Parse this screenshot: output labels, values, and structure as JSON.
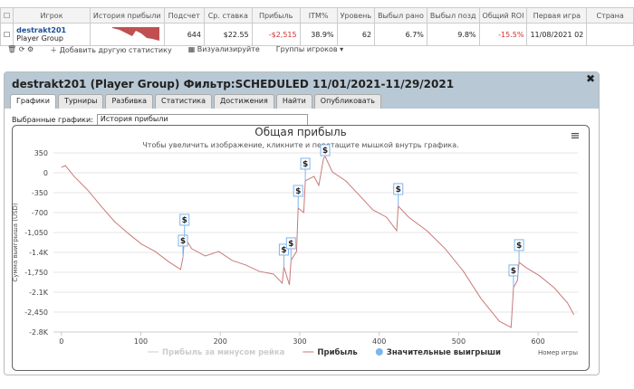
{
  "table": {
    "headers": [
      "Игрок",
      "История прибыли",
      "Подсчет",
      "Ср. ставка",
      "Прибыль",
      "ITM%",
      "Уровень",
      "Выбыл рано",
      "Выбыл позд",
      "Общий ROI",
      "Первая игра",
      "Страна"
    ],
    "row": {
      "player": "destrakt201",
      "group": "Player Group",
      "cells": [
        "644",
        "$22.55",
        "-$2,515",
        "38.9%",
        "62",
        "6.7%",
        "9.8%",
        "-15.5%",
        "11/08/2021 02"
      ]
    }
  },
  "toolbar": [
    "Добавить другую статистику",
    "Визуализируйте",
    "Группы игроков"
  ],
  "panel": {
    "title": "destrakt201 (Player Group)",
    "filter_label": "Фильтр:",
    "filter": "SCHEDULED 11/01/2021-11/29/2021",
    "tabs": [
      "Графики",
      "Турниры",
      "Разбивка",
      "Статистика",
      "Достижения",
      "Найти",
      "Опубликовать"
    ],
    "select_label": "Выбранные графики:",
    "select_value": "История прибыли"
  },
  "chart": {
    "type": "line",
    "title": "Общая прибыль",
    "subtitle": "Чтобы увеличить изображение, кликните и перетащите мышкой внутрь графика.",
    "y_label": "Сумма выигрыша (USD)",
    "x_label": "Номер игры",
    "xlim": [
      -10,
      650
    ],
    "xticks": [
      0,
      100,
      200,
      300,
      400,
      500,
      600
    ],
    "ylim": [
      -2800,
      350
    ],
    "yticks": [
      350,
      0,
      -350,
      -700,
      {
        "value": -1050,
        "label": "-1,050"
      },
      {
        "value": -1400,
        "label": "-1.4K"
      },
      {
        "value": -1750,
        "label": "-1,750"
      },
      {
        "value": -2100,
        "label": "-2.1K"
      },
      {
        "value": -2450,
        "label": "-2,450"
      },
      {
        "value": -2800,
        "label": "-2.8K"
      }
    ],
    "grid": true,
    "series": [
      {
        "name": "Прибыль за минусом рейка",
        "color": "#cccccc",
        "hidden": true
      },
      {
        "name": "Прибыль",
        "color": "#c97a7a",
        "x": [
          0,
          5,
          16,
          33,
          50,
          67,
          84,
          101,
          118,
          136,
          150,
          153,
          155,
          164,
          181,
          198,
          215,
          232,
          249,
          267,
          278,
          280,
          287,
          289,
          296,
          298,
          305,
          307,
          318,
          324,
          330,
          332,
          341,
          358,
          374,
          392,
          409,
          422,
          424,
          437,
          460,
          483,
          506,
          528,
          551,
          566,
          569,
          574,
          576,
          585,
          602,
          620,
          637,
          645
        ],
        "values": [
          95,
          127,
          -63,
          -302,
          -588,
          -859,
          -1065,
          -1256,
          -1383,
          -1574,
          -1700,
          -1494,
          -1129,
          -1335,
          -1463,
          -1383,
          -1542,
          -1622,
          -1733,
          -1781,
          -1940,
          -1654,
          -1971,
          -1542,
          -1383,
          -620,
          -700,
          -143,
          -63,
          -222,
          255,
          286,
          16,
          -143,
          -381,
          -652,
          -779,
          -1018,
          -588,
          -779,
          -1018,
          -1335,
          -1733,
          -2210,
          -2608,
          -2719,
          -2019,
          -1892,
          -1574,
          -1669,
          -1813,
          -2019,
          -2289,
          -2496
        ]
      }
    ],
    "big_wins": {
      "name": "Значительные выигрыши",
      "color": "#7cb5ec",
      "marker_label": "$",
      "x": [
        153,
        155,
        280,
        289,
        298,
        307,
        332,
        424,
        569,
        576
      ],
      "values": [
        -1494,
        -1129,
        -1654,
        -1542,
        -620,
        -143,
        286,
        -588,
        -2019,
        -1574
      ]
    }
  }
}
